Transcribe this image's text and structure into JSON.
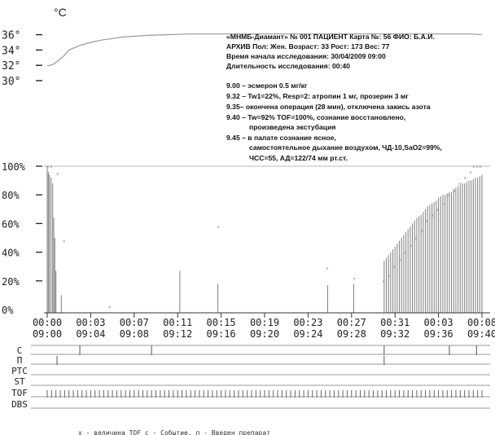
{
  "chart_data": [
    {
      "type": "line",
      "unit": "°C",
      "y_ticks": [
        "36°",
        "34°",
        "32°",
        "30°"
      ],
      "ylim": [
        29,
        36.5
      ],
      "temperature": {
        "x": [
          "09:00",
          "09:00",
          "09:01",
          "09:01",
          "09:02",
          "09:03",
          "09:04",
          "09:05",
          "09:06",
          "09:07",
          "09:08",
          "09:09",
          "09:11",
          "09:13",
          "09:15",
          "09:17",
          "09:19",
          "09:21",
          "09:23",
          "09:25",
          "09:27",
          "09:29",
          "09:31",
          "09:33",
          "09:35",
          "09:37",
          "09:39",
          "09:40"
        ],
        "y": [
          31.9,
          32.1,
          32.6,
          33.2,
          34.0,
          34.6,
          35.0,
          35.3,
          35.5,
          35.7,
          35.8,
          35.9,
          36.0,
          36.1,
          36.1,
          36.1,
          36.1,
          36.1,
          36.1,
          36.1,
          36.1,
          36.1,
          36.1,
          36.1,
          36.1,
          36.1,
          36.1,
          36.0
        ]
      },
      "info": {
        "line1": "«МНМБ-Диамант» № 001 ПАЦИЕНТ  Карта №: 56 ФИО: Б.А.И.",
        "line2": "АРХИВ Пол: Жен. Возраст: 33 Рост: 173 Вес: 77",
        "line3": "Время начала исследования: 30/04/2009 09:00",
        "line4": "Длительность исследования: 00:40"
      },
      "events": [
        "9.00 – эсмерон 0.5 мг/кг",
        "9.32 – Tw1=22%, Resp=2: атропин 1 мг, прозерин 3 мг",
        "9.35– окончена операция (28 мин), отключена закись азота",
        "9.40 – Tw=92% TOF=100%, сознание восстановлено,",
        "произведена экстубация",
        "9.45 – в палате сознание ясное,",
        "самостоятельное дыхание воздухом, ЧД-10,SaO2=99%,",
        "ЧСС=55, АД=122/74 мм рт.ст."
      ]
    },
    {
      "type": "bar",
      "title": "",
      "y_ticks": [
        "100%",
        "80%",
        "60%",
        "40%",
        "20%",
        "0%"
      ],
      "ylim": [
        0,
        100
      ],
      "x_ticks_elapsed": [
        "00:00",
        "00:03",
        "00:07",
        "00:11",
        "00:15",
        "00:19",
        "00:23",
        "00:27",
        "00:31",
        "00:03",
        "00:08"
      ],
      "x_ticks_clock": [
        "09:00",
        "09:04",
        "09:08",
        "09:12",
        "09:16",
        "09:20",
        "09:24",
        "09:28",
        "09:32",
        "09:36",
        "09:40"
      ],
      "x_minutes": [
        0,
        0.1,
        0.2,
        0.35,
        0.5,
        0.6,
        0.7,
        0.8,
        1.3,
        12.2,
        15.7,
        25.8,
        28.2,
        31.0,
        31.2,
        31.4,
        31.6,
        31.8,
        32.0,
        32.2,
        32.4,
        32.6,
        32.8,
        33.0,
        33.2,
        33.4,
        33.6,
        33.8,
        34.0,
        34.2,
        34.4,
        34.6,
        34.8,
        35.0,
        35.2,
        35.4,
        35.6,
        35.8,
        36.0,
        36.2,
        36.4,
        36.6,
        36.8,
        37.0,
        37.2,
        37.4,
        37.6,
        37.8,
        38.0,
        38.2,
        38.4,
        38.6,
        38.8,
        39.0,
        39.2,
        39.4,
        39.6,
        39.8,
        40.0
      ],
      "t1_values": [
        100,
        96,
        94,
        92,
        88,
        64,
        50,
        27,
        10,
        27,
        18,
        17,
        18,
        34,
        36,
        38,
        40,
        42,
        44,
        46,
        48,
        50,
        52,
        54,
        56,
        58,
        60,
        62,
        64,
        65,
        66,
        68,
        70,
        72,
        73,
        74,
        75,
        76,
        78,
        79,
        80,
        80,
        81,
        82,
        82,
        84,
        85,
        86,
        87,
        88,
        88,
        89,
        90,
        90,
        91,
        92,
        92,
        93,
        94
      ],
      "tof_markers": [
        {
          "x": 0.1,
          "y": 100
        },
        {
          "x": 0.4,
          "y": 100
        },
        {
          "x": 1.0,
          "y": 95
        },
        {
          "x": 1.6,
          "y": 48
        },
        {
          "x": 5.8,
          "y": 2
        },
        {
          "x": 15.8,
          "y": 58
        },
        {
          "x": 25.8,
          "y": 29
        },
        {
          "x": 28.3,
          "y": 22
        },
        {
          "x": 31.0,
          "y": 20
        },
        {
          "x": 31.5,
          "y": 24
        },
        {
          "x": 32.0,
          "y": 30
        },
        {
          "x": 32.5,
          "y": 35
        },
        {
          "x": 33.0,
          "y": 40
        },
        {
          "x": 33.5,
          "y": 45
        },
        {
          "x": 34.0,
          "y": 50
        },
        {
          "x": 34.5,
          "y": 55
        },
        {
          "x": 35.0,
          "y": 62
        },
        {
          "x": 35.5,
          "y": 66
        },
        {
          "x": 36.0,
          "y": 70
        },
        {
          "x": 36.5,
          "y": 74
        },
        {
          "x": 37.0,
          "y": 80
        },
        {
          "x": 37.5,
          "y": 83
        },
        {
          "x": 38.0,
          "y": 88
        },
        {
          "x": 38.5,
          "y": 92
        },
        {
          "x": 39.0,
          "y": 96
        },
        {
          "x": 39.3,
          "y": 100
        },
        {
          "x": 39.6,
          "y": 100
        },
        {
          "x": 39.9,
          "y": 100
        }
      ]
    }
  ],
  "tracks": {
    "labels": [
      "С",
      "П",
      "PTC",
      "ST",
      "TOF",
      "DBS"
    ],
    "events_c_minutes": [
      3,
      9.6,
      31,
      37,
      39.5
    ],
    "events_p_minutes": [
      0.9,
      31
    ]
  },
  "footnote": "x - величина TOF с - Событие, п - Введен препарат"
}
